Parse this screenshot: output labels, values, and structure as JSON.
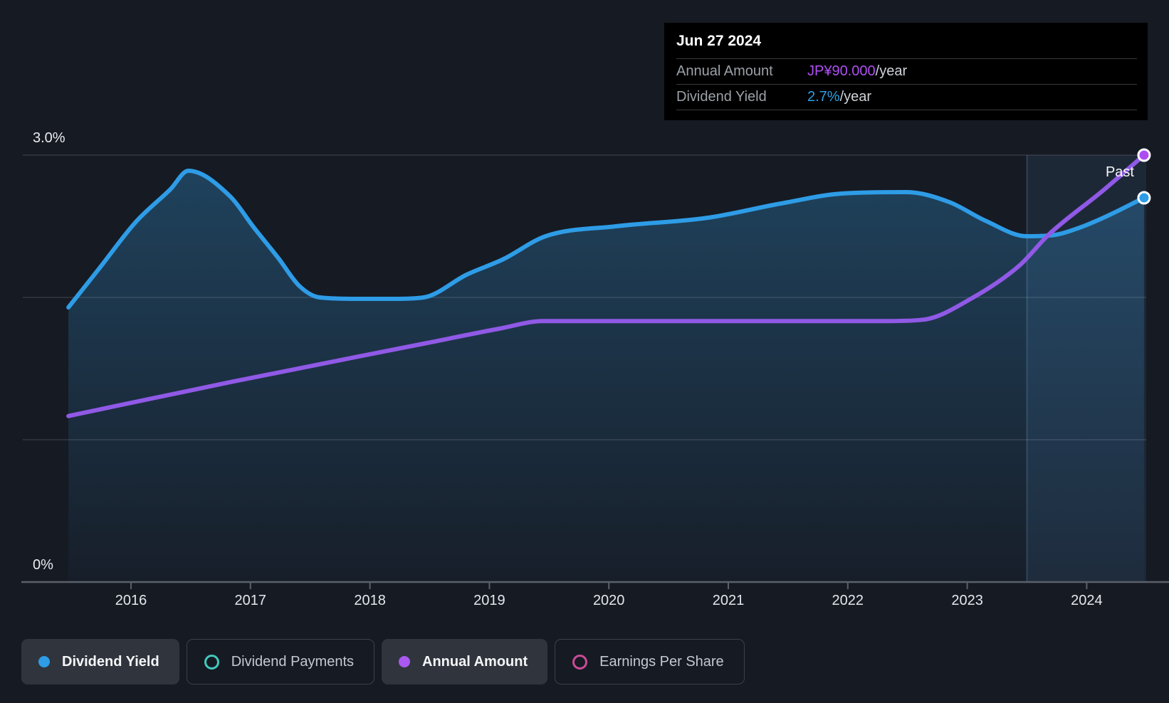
{
  "page": {
    "background": "#161A23"
  },
  "tooltip": {
    "date": "Jun 27 2024",
    "rows": [
      {
        "label": "Annual Amount",
        "value": "JP¥90.000",
        "suffix": "/year",
        "color": "#AE4FF3"
      },
      {
        "label": "Dividend Yield",
        "value": "2.7%",
        "suffix": "/year",
        "color": "#2BA0E4"
      }
    ]
  },
  "past_label": "Past",
  "legend": [
    {
      "label": "Dividend Yield",
      "color": "#2E9CE6",
      "marker": "filled",
      "active": true
    },
    {
      "label": "Dividend Payments",
      "color": "#41C9BC",
      "marker": "ring",
      "active": false
    },
    {
      "label": "Annual Amount",
      "color": "#A958F0",
      "marker": "filled",
      "active": true
    },
    {
      "label": "Earnings Per Share",
      "color": "#C94C96",
      "marker": "ring",
      "active": false
    }
  ],
  "chart_data": {
    "type": "line",
    "title": "",
    "x_axis": {
      "ticks": [
        2016,
        2017,
        2018,
        2019,
        2020,
        2021,
        2022,
        2023,
        2024
      ],
      "range": [
        2015.476,
        2024.48
      ]
    },
    "y_axis": {
      "unit": "%",
      "range": [
        0,
        3.0
      ],
      "gridlines": [
        3.0,
        2.0,
        1.0
      ],
      "labels": [
        {
          "text": "3.0%",
          "value": 3.0
        },
        {
          "text": "0%",
          "value": 0
        }
      ]
    },
    "past_region": {
      "start": 2023.5,
      "end": 2024.48,
      "label": "Past"
    },
    "series": [
      {
        "name": "Dividend Yield",
        "unit": "%",
        "color": "#2E9CE6",
        "area": true,
        "end_marker": "#2E9CE6",
        "points": [
          [
            2015.476,
            1.93
          ],
          [
            2015.74,
            2.21
          ],
          [
            2016.04,
            2.53
          ],
          [
            2016.33,
            2.76
          ],
          [
            2016.48,
            2.89
          ],
          [
            2016.83,
            2.71
          ],
          [
            2017.03,
            2.49
          ],
          [
            2017.23,
            2.28
          ],
          [
            2017.41,
            2.08
          ],
          [
            2017.58,
            2.0
          ],
          [
            2017.9,
            1.99
          ],
          [
            2018.2,
            1.99
          ],
          [
            2018.45,
            2.0
          ],
          [
            2018.81,
            2.16
          ],
          [
            2019.12,
            2.27
          ],
          [
            2019.47,
            2.43
          ],
          [
            2020.06,
            2.5
          ],
          [
            2020.83,
            2.56
          ],
          [
            2021.44,
            2.66
          ],
          [
            2021.95,
            2.73
          ],
          [
            2022.49,
            2.74
          ],
          [
            2022.85,
            2.67
          ],
          [
            2023.15,
            2.54
          ],
          [
            2023.5,
            2.43
          ],
          [
            2023.74,
            2.44
          ],
          [
            2023.94,
            2.49
          ],
          [
            2024.14,
            2.56
          ],
          [
            2024.48,
            2.7
          ]
        ]
      },
      {
        "name": "Annual Amount",
        "unit": "JP¥/year",
        "color": "#9059E6",
        "end_marker": "#AC4DF2",
        "yen_per_pct": 30,
        "points": [
          [
            2015.476,
            35
          ],
          [
            2016.84,
            42.2
          ],
          [
            2018.48,
            50.4
          ],
          [
            2019.08,
            53.4
          ],
          [
            2019.45,
            55
          ],
          [
            2020.5,
            55
          ],
          [
            2021.5,
            55
          ],
          [
            2022.3,
            55
          ],
          [
            2022.63,
            55.3
          ],
          [
            2023.05,
            60
          ],
          [
            2023.44,
            66.8
          ],
          [
            2023.68,
            73.2
          ],
          [
            2024.14,
            82.6
          ],
          [
            2024.48,
            90
          ]
        ]
      }
    ],
    "colors": {
      "gridline": "rgba(255,255,255,0.13)",
      "axis": "#5A616B",
      "area_fill_top": "rgba(47,134,191,0.38)",
      "area_fill_bottom": "rgba(47,134,191,0.04)",
      "past_overlay": "rgba(96,170,235,0.10)",
      "past_divider": "rgba(140,195,245,0.20)"
    }
  }
}
